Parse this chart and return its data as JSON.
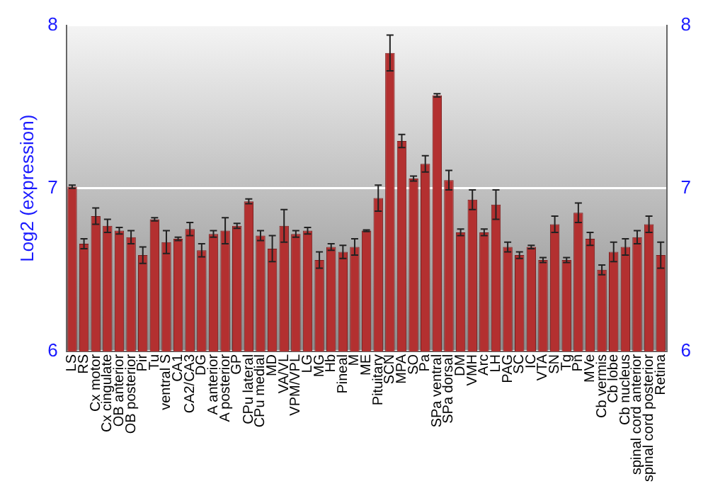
{
  "chart_data": {
    "type": "bar",
    "ylabel": "Log2 (expression)",
    "categories": [
      "LS",
      "RS",
      "Cx motor",
      "Cx cingulate",
      "OB anterior",
      "OB posterior",
      "Pir",
      "Tu",
      "ventral S",
      "CA1",
      "CA2/CA3",
      "DG",
      "A anterior",
      "A posterior",
      "GP",
      "CPu lateral",
      "CPu medial",
      "MD",
      "VA/VL",
      "VPM/VPL",
      "LG",
      "MG",
      "Hb",
      "Pineal",
      "M",
      "ME",
      "Pituitary",
      "SCN",
      "MPA",
      "SO",
      "Pa",
      "SPa ventral",
      "SPa dorsal",
      "DM",
      "VMH",
      "Arc",
      "LH",
      "PAG",
      "SC",
      "IC",
      "VTA",
      "SN",
      "Tg",
      "Pn",
      "MVe",
      "Cb vermis",
      "Cb lobe",
      "Cb nucleus",
      "spinal cord anterior",
      "spinal cord posterior",
      "Retina"
    ],
    "values": [
      7.01,
      6.66,
      6.83,
      6.77,
      6.74,
      6.7,
      6.59,
      6.81,
      6.67,
      6.69,
      6.75,
      6.62,
      6.72,
      6.74,
      6.77,
      6.92,
      6.71,
      6.63,
      6.77,
      6.72,
      6.74,
      6.56,
      6.64,
      6.61,
      6.64,
      6.74,
      6.94,
      7.83,
      7.29,
      7.06,
      7.15,
      7.57,
      7.05,
      6.73,
      6.93,
      6.73,
      6.9,
      6.64,
      6.59,
      6.64,
      6.56,
      6.78,
      6.56,
      6.85,
      6.69,
      6.5,
      6.61,
      6.64,
      6.7,
      6.78,
      6.59
    ],
    "errors": [
      0.01,
      0.03,
      0.05,
      0.04,
      0.02,
      0.04,
      0.05,
      0.01,
      0.07,
      0.01,
      0.04,
      0.04,
      0.02,
      0.08,
      0.015,
      0.015,
      0.03,
      0.08,
      0.1,
      0.02,
      0.02,
      0.05,
      0.02,
      0.04,
      0.05,
      0.005,
      0.08,
      0.11,
      0.04,
      0.015,
      0.05,
      0.01,
      0.06,
      0.02,
      0.06,
      0.02,
      0.09,
      0.03,
      0.02,
      0.01,
      0.015,
      0.05,
      0.015,
      0.06,
      0.04,
      0.03,
      0.06,
      0.05,
      0.04,
      0.05,
      0.08
    ],
    "color": "#b33030",
    "ylim": [
      6,
      8
    ],
    "yticks": [
      6,
      7,
      8
    ],
    "y2lim": [
      6,
      8
    ],
    "y2ticks": [
      6,
      7,
      8
    ],
    "grid": "y"
  }
}
